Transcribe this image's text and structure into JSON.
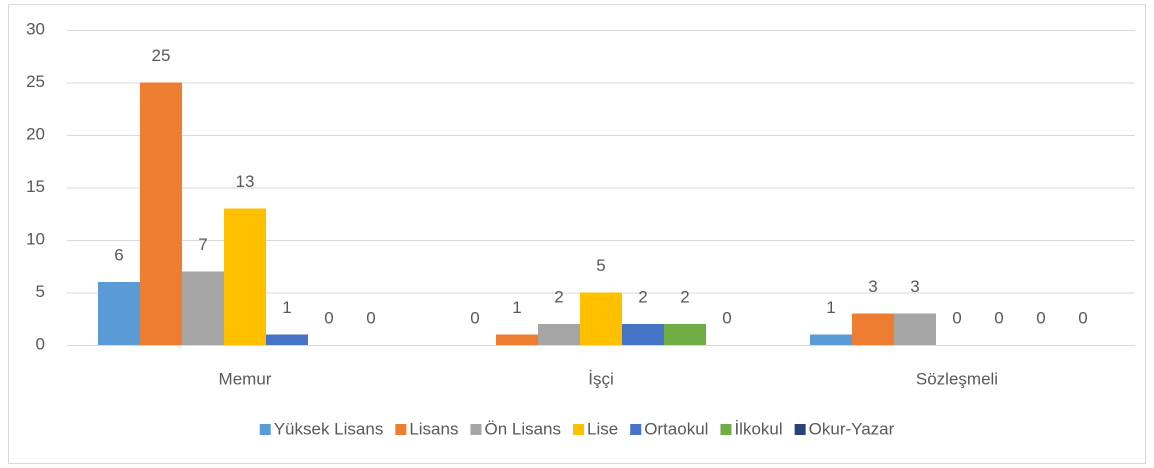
{
  "chart_data": {
    "type": "bar",
    "categories": [
      "Memur",
      "İşçi",
      "Sözleşmeli"
    ],
    "series": [
      {
        "name": "Yüksek Lisans",
        "color": "#5b9bd5",
        "values": [
          6,
          0,
          1
        ]
      },
      {
        "name": "Lisans",
        "color": "#ed7d31",
        "values": [
          25,
          1,
          3
        ]
      },
      {
        "name": "Ön Lisans",
        "color": "#a5a5a5",
        "values": [
          7,
          2,
          3
        ]
      },
      {
        "name": "Lise",
        "color": "#ffc000",
        "values": [
          13,
          5,
          0
        ]
      },
      {
        "name": "Ortaokul",
        "color": "#4472c4",
        "values": [
          1,
          2,
          0
        ]
      },
      {
        "name": "İlkokul",
        "color": "#70ad47",
        "values": [
          0,
          2,
          0
        ]
      },
      {
        "name": "Okur-Yazar",
        "color": "#264478",
        "values": [
          0,
          0,
          0
        ]
      }
    ],
    "ylim": [
      0,
      30
    ],
    "yticks": [
      0,
      5,
      10,
      15,
      20,
      25,
      30
    ],
    "grid": true,
    "legend": "bottom"
  }
}
